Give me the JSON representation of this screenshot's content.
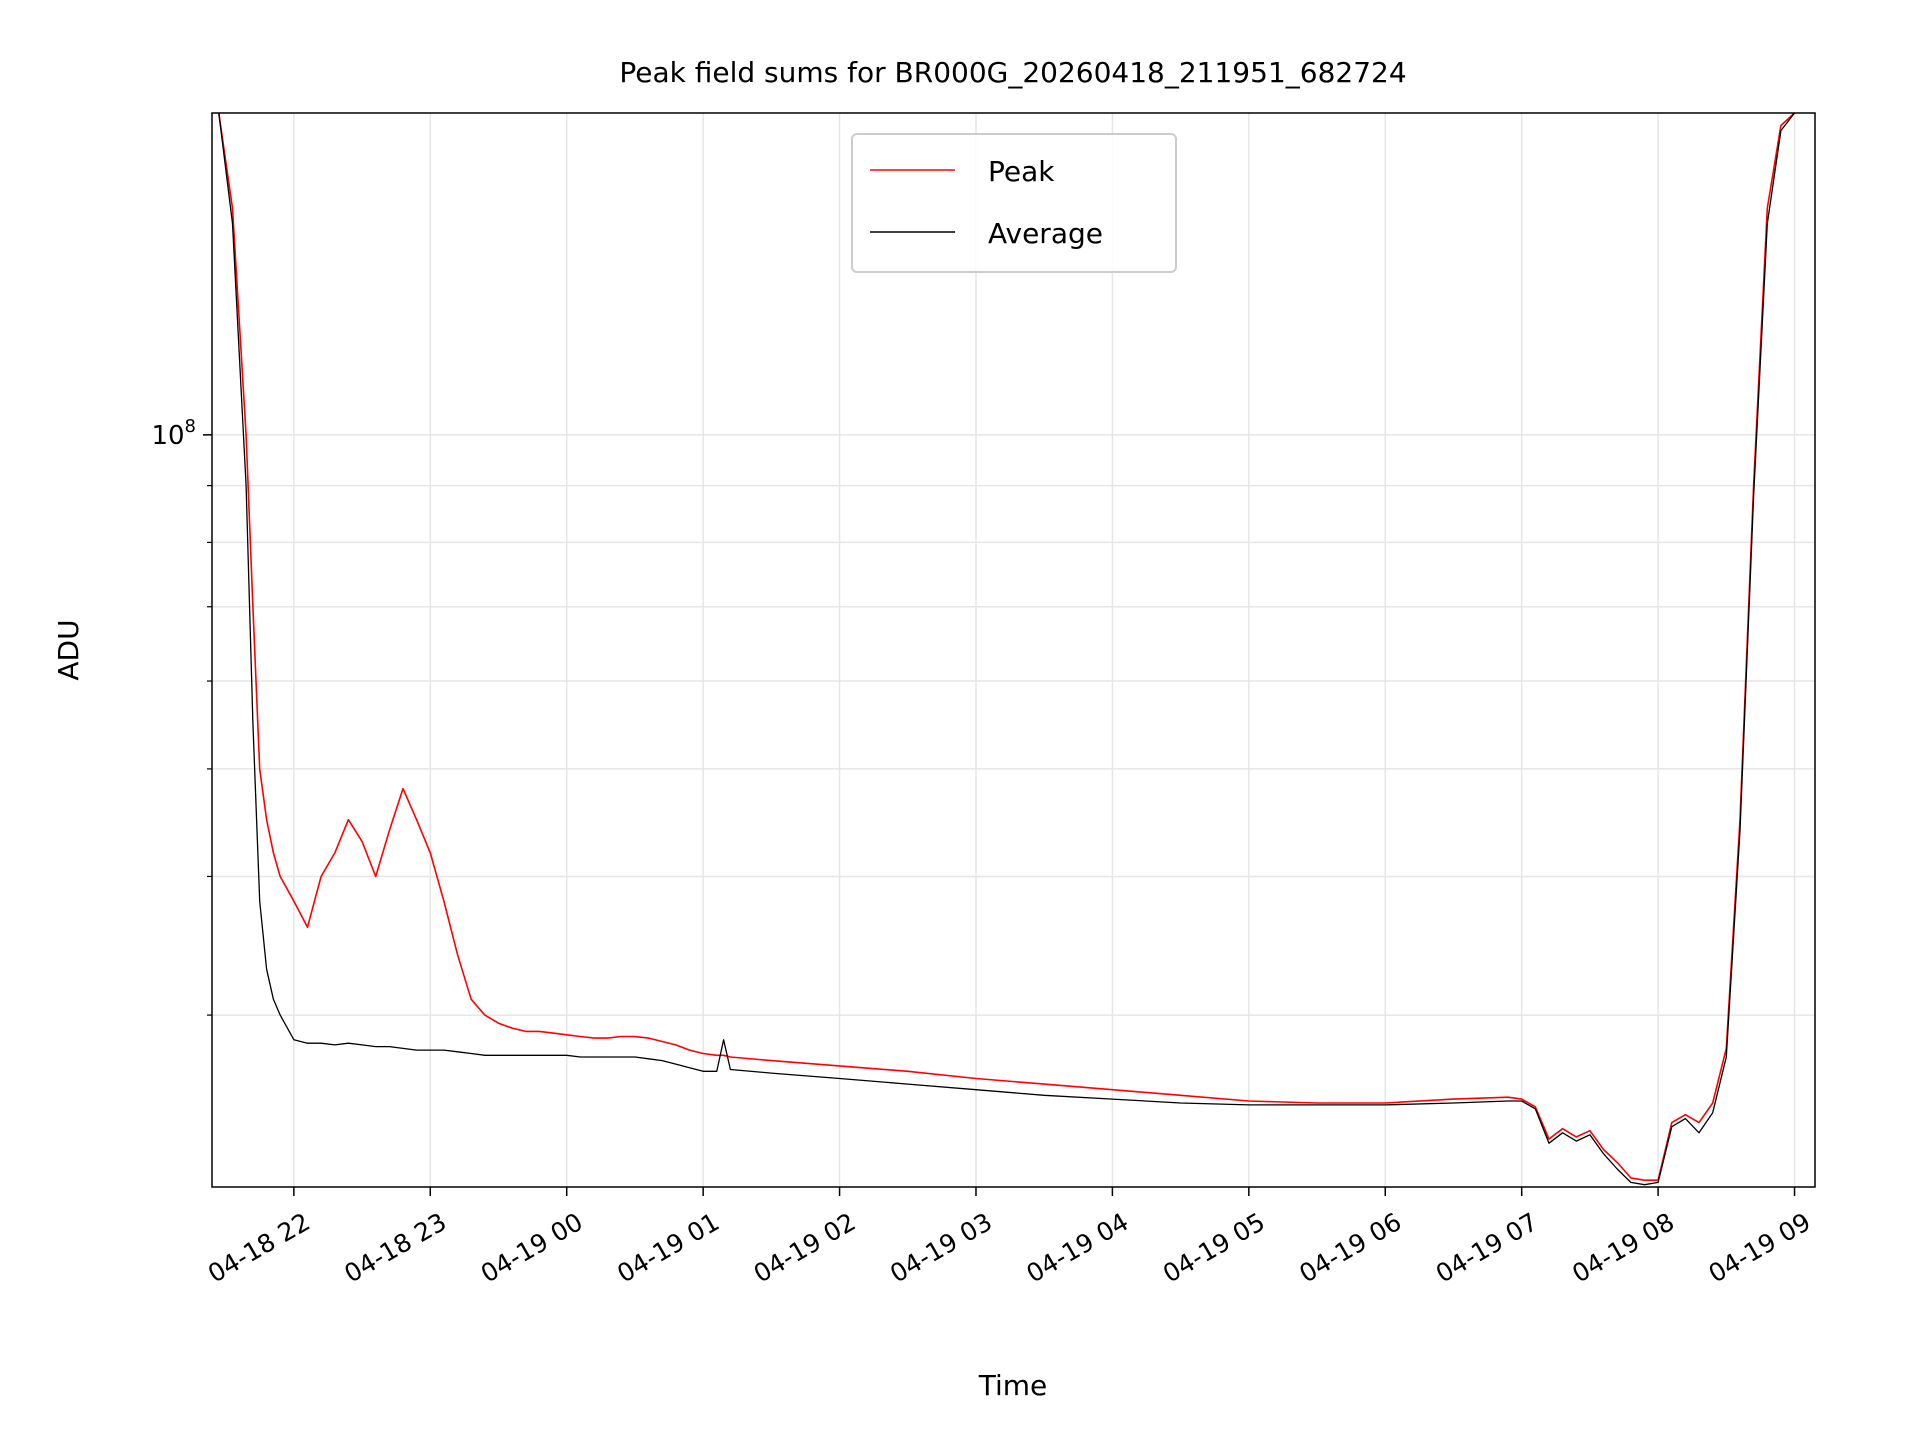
{
  "chart_data": {
    "type": "line",
    "title": "Peak field sums for BR000G_20260418_211951_682724",
    "xlabel": "Time",
    "ylabel": "ADU",
    "yscale": "log",
    "ylim": [
      21000000,
      195000000
    ],
    "y_ticks": [
      {
        "value": 100000000,
        "base": "10",
        "exp": "8"
      }
    ],
    "y_minor_ticks": [
      30000000,
      40000000,
      50000000,
      60000000,
      70000000,
      80000000,
      90000000,
      200000000
    ],
    "x_range_hours": [
      -0.6,
      11.15
    ],
    "x_ticks": [
      {
        "label": "04-18 22",
        "value": 0
      },
      {
        "label": "04-18 23",
        "value": 1
      },
      {
        "label": "04-19 00",
        "value": 2
      },
      {
        "label": "04-19 01",
        "value": 3
      },
      {
        "label": "04-19 02",
        "value": 4
      },
      {
        "label": "04-19 03",
        "value": 5
      },
      {
        "label": "04-19 04",
        "value": 6
      },
      {
        "label": "04-19 05",
        "value": 7
      },
      {
        "label": "04-19 06",
        "value": 8
      },
      {
        "label": "04-19 07",
        "value": 9
      },
      {
        "label": "04-19 08",
        "value": 10
      },
      {
        "label": "04-19 09",
        "value": 11
      }
    ],
    "x_unit_note": "x values are hours since 04-18 22:00",
    "grid": true,
    "legend_position": "top-center",
    "series": [
      {
        "name": "Peak",
        "color": "#ff0000",
        "x": [
          -0.55,
          -0.45,
          -0.35,
          -0.3,
          -0.25,
          -0.2,
          -0.15,
          -0.1,
          0.0,
          0.1,
          0.2,
          0.3,
          0.4,
          0.5,
          0.6,
          0.7,
          0.8,
          0.9,
          1.0,
          1.1,
          1.2,
          1.3,
          1.4,
          1.5,
          1.6,
          1.7,
          1.8,
          1.9,
          2.0,
          2.1,
          2.2,
          2.3,
          2.4,
          2.5,
          2.6,
          2.7,
          2.8,
          2.9,
          3.0,
          3.1,
          3.15,
          3.2,
          3.5,
          4.0,
          4.5,
          5.0,
          5.5,
          6.0,
          6.5,
          7.0,
          7.5,
          8.0,
          8.5,
          8.9,
          9.0,
          9.1,
          9.2,
          9.3,
          9.4,
          9.5,
          9.6,
          9.7,
          9.8,
          9.9,
          10.0,
          10.1,
          10.2,
          10.3,
          10.4,
          10.5,
          10.6,
          10.7,
          10.8,
          10.9,
          11.0
        ],
        "y": [
          195000000,
          160000000,
          100000000,
          70000000,
          50000000,
          45000000,
          42000000,
          40000000,
          38000000,
          36000000,
          40000000,
          42000000,
          45000000,
          43000000,
          40000000,
          44000000,
          48000000,
          45000000,
          42000000,
          38000000,
          34000000,
          31000000,
          30000000,
          29500000,
          29200000,
          29000000,
          29000000,
          28900000,
          28800000,
          28700000,
          28600000,
          28600000,
          28700000,
          28700000,
          28600000,
          28400000,
          28200000,
          27900000,
          27700000,
          27600000,
          27600000,
          27500000,
          27300000,
          27000000,
          26700000,
          26300000,
          26000000,
          25700000,
          25400000,
          25100000,
          25000000,
          25000000,
          25200000,
          25300000,
          25200000,
          24800000,
          23200000,
          23700000,
          23300000,
          23600000,
          22700000,
          22100000,
          21400000,
          21300000,
          21300000,
          24000000,
          24400000,
          24000000,
          25000000,
          28000000,
          45000000,
          90000000,
          160000000,
          190000000,
          195000000
        ]
      },
      {
        "name": "Average",
        "color": "#000000",
        "x": [
          -0.55,
          -0.45,
          -0.35,
          -0.3,
          -0.25,
          -0.2,
          -0.15,
          -0.1,
          0.0,
          0.1,
          0.2,
          0.3,
          0.4,
          0.5,
          0.6,
          0.7,
          0.8,
          0.9,
          1.0,
          1.1,
          1.2,
          1.3,
          1.4,
          1.5,
          1.6,
          1.7,
          1.8,
          1.9,
          2.0,
          2.1,
          2.2,
          2.3,
          2.4,
          2.5,
          2.6,
          2.7,
          2.8,
          2.9,
          3.0,
          3.1,
          3.15,
          3.2,
          3.5,
          4.0,
          4.5,
          5.0,
          5.5,
          6.0,
          6.5,
          7.0,
          7.5,
          8.0,
          8.5,
          8.9,
          9.0,
          9.1,
          9.2,
          9.3,
          9.4,
          9.5,
          9.6,
          9.7,
          9.8,
          9.9,
          10.0,
          10.1,
          10.2,
          10.3,
          10.4,
          10.5,
          10.6,
          10.7,
          10.8,
          10.9,
          11.0
        ],
        "y": [
          195000000,
          155000000,
          90000000,
          55000000,
          38000000,
          33000000,
          31000000,
          30000000,
          28500000,
          28300000,
          28300000,
          28200000,
          28300000,
          28200000,
          28100000,
          28100000,
          28000000,
          27900000,
          27900000,
          27900000,
          27800000,
          27700000,
          27600000,
          27600000,
          27600000,
          27600000,
          27600000,
          27600000,
          27600000,
          27500000,
          27500000,
          27500000,
          27500000,
          27500000,
          27400000,
          27300000,
          27100000,
          26900000,
          26700000,
          26700000,
          28500000,
          26800000,
          26600000,
          26300000,
          26000000,
          25700000,
          25400000,
          25200000,
          25000000,
          24900000,
          24900000,
          24900000,
          25000000,
          25100000,
          25100000,
          24700000,
          23000000,
          23500000,
          23100000,
          23400000,
          22500000,
          21800000,
          21200000,
          21100000,
          21200000,
          23800000,
          24200000,
          23500000,
          24500000,
          27500000,
          44000000,
          88000000,
          155000000,
          188000000,
          195000000
        ]
      }
    ]
  }
}
